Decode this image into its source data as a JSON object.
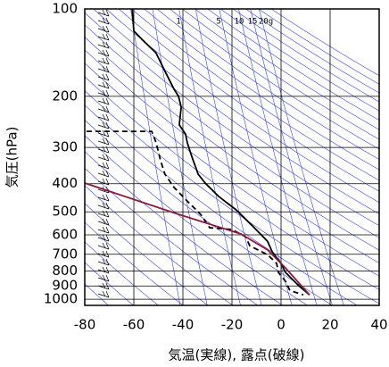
{
  "chart_data": {
    "type": "sounding",
    "xlabel": "気温(実線), 露点(破線)",
    "ylabel": "気圧(hPa)",
    "xlim": [
      -80,
      40
    ],
    "xticks": [
      -80,
      -60,
      -40,
      -20,
      0,
      20,
      40
    ],
    "ylim": [
      100,
      1050
    ],
    "yticks": [
      100,
      200,
      300,
      400,
      500,
      600,
      700,
      800,
      900,
      1000
    ],
    "ylog": true,
    "grid": true,
    "mixing_ratio_labels": [
      "1",
      "5",
      "10",
      "15",
      "20g"
    ],
    "series": [
      {
        "color": "#000000",
        "dashed": false,
        "x": [
          -60.7,
          -60,
          -56.4,
          -50.9,
          -47.3,
          -43.6,
          -41.8,
          -40.7,
          -41.5,
          -38.9,
          -38.2,
          -36.4,
          -33.8,
          -30.9,
          -25.5,
          -18.2,
          -12.7,
          -9.1,
          -5.5,
          -3.6,
          0,
          1.8,
          7.3,
          11.6
        ],
        "values": [
          100,
          119,
          128,
          142,
          164,
          189,
          200,
          218,
          251,
          270,
          289,
          322,
          371,
          398,
          442,
          493,
          548,
          588,
          632,
          687,
          753,
          808,
          900,
          966
        ]
      },
      {
        "color": "#000000",
        "dashed": true,
        "x": [
          -79.3,
          -52.7,
          -50.9,
          -49.1,
          -47.3,
          -43.6,
          -38.2,
          -32.7,
          -29.1,
          -20,
          -14.5,
          -12.7,
          -5.5,
          -1.8,
          -1.1,
          1.8,
          3.6,
          9.1
        ],
        "values": [
          264,
          264,
          289,
          333,
          371,
          412,
          459,
          511,
          567,
          575,
          609,
          655,
          702,
          753,
          808,
          867,
          933,
          966
        ]
      },
      {
        "color": "#8b1a3c",
        "dashed": false,
        "x": [
          -80,
          -41.8,
          -16.4,
          -5.5,
          1.8,
          11.6
        ],
        "values": [
          398,
          510,
          596,
          676,
          780,
          966
        ]
      }
    ]
  }
}
